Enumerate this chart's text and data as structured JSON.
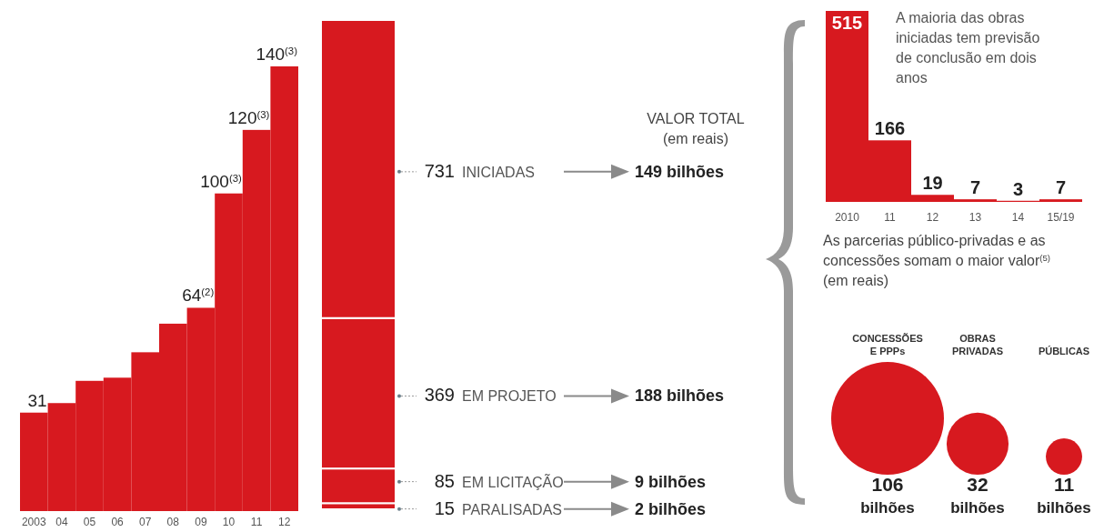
{
  "chart_data": [
    {
      "type": "bar",
      "categories": [
        "2003",
        "04",
        "05",
        "06",
        "07",
        "08",
        "09",
        "10",
        "11",
        "12"
      ],
      "values": [
        31,
        34,
        41,
        42,
        50,
        59,
        64,
        100,
        120,
        140
      ],
      "color": "#d7191f",
      "value_labels": [
        "31",
        null,
        null,
        null,
        null,
        null,
        "64$^{(2)}$",
        "100$^{(3)}$",
        "120$^{(3)}$",
        "140$^{(3)}$"
      ]
    },
    {
      "type": "bar",
      "stacked": true,
      "categories": [
        null
      ],
      "data_labels": true,
      "series": [
        {
          "name": "PARALISADAS",
          "color": "#d7191f",
          "values": [
            15
          ]
        },
        {
          "name": "EM LICITAÇÃO",
          "color": "#d7191f",
          "values": [
            85
          ]
        },
        {
          "name": "EM PROJETO",
          "color": "#d7191f",
          "values": [
            369
          ]
        },
        {
          "name": "INICIADAS",
          "color": "#d7191f",
          "values": [
            731
          ]
        }
      ],
      "annotations": [
        "VALOR TOTAL (em reais)",
        "2 bilhões",
        "9 bilhões",
        "188 bilhões",
        "149 bilhões"
      ]
    },
    {
      "type": "bar",
      "categories": [
        "2010",
        "11",
        "12",
        "13",
        "14",
        "15/19"
      ],
      "values": [
        515,
        166,
        19,
        7,
        3,
        7
      ],
      "color": "#d7191f",
      "data_labels": true,
      "annotations": [
        "A maioria das obras iniciadas tem previsão de conclusão em dois anos"
      ]
    },
    {
      "type": "other",
      "title": "As parcerias público-privadas e as concessões somam o maior valor$^{(5)}$ (em reais)",
      "categories": [
        "CONCESSÕES E PPPs",
        "OBRAS PRIVADAS",
        "PÚBLICAS"
      ],
      "values": [
        106,
        32,
        11
      ],
      "color": "#d7191f",
      "value_labels": [
        "106 bilhões",
        "32 bilhões",
        "11 bilhões"
      ]
    }
  ]
}
